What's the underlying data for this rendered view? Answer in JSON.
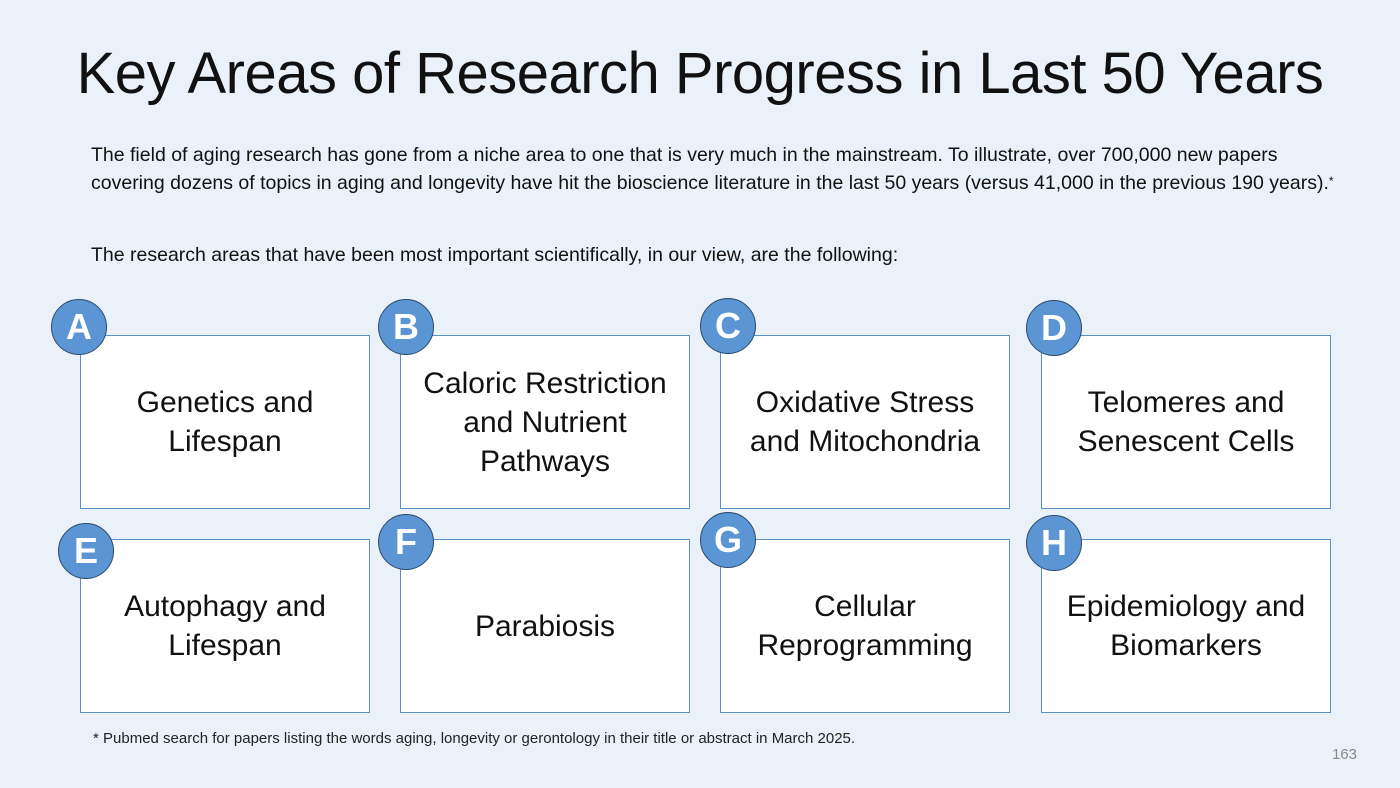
{
  "slide": {
    "title": "Key Areas of Research Progress in Last 50 Years",
    "intro": "The field of aging research has gone from a niche area to one that is very much in the mainstream. To illustrate, over 700,000 new papers covering dozens of topics in aging and longevity have hit the bioscience literature in the last 50 years (versus 41,000 in the previous 190 years).",
    "intro_marker": "*",
    "lead": "The research areas that have been most important scientifically, in our view, are the following:",
    "areas": [
      {
        "letter": "A",
        "label": "Genetics and Lifespan"
      },
      {
        "letter": "B",
        "label": "Caloric Restriction and Nutrient Pathways"
      },
      {
        "letter": "C",
        "label": "Oxidative Stress and Mitochondria"
      },
      {
        "letter": "D",
        "label": "Telomeres and Senescent Cells"
      },
      {
        "letter": "E",
        "label": "Autophagy and Lifespan"
      },
      {
        "letter": "F",
        "label": "Parabiosis"
      },
      {
        "letter": "G",
        "label": "Cellular Reprogramming"
      },
      {
        "letter": "H",
        "label": "Epidemiology and Biomarkers"
      }
    ],
    "footnote": "* Pubmed search for papers listing the words aging, longevity or gerontology in their title or abstract in March 2025.",
    "page_number": "163"
  },
  "colors": {
    "background": "#eaf1f8",
    "card_border": "#5b8fc6",
    "badge_fill": "#5b95d3",
    "badge_border": "#2b4c6e"
  }
}
